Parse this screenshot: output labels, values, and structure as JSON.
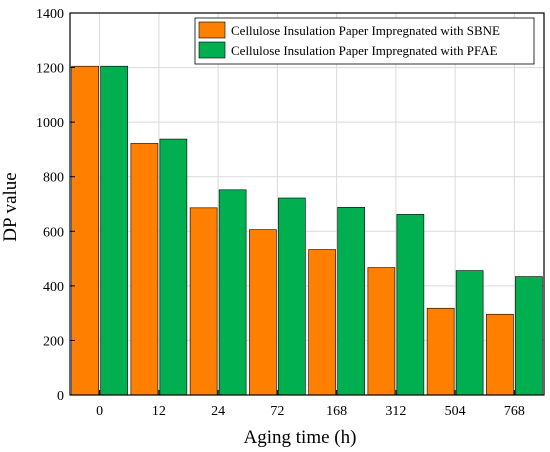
{
  "chart_data": {
    "type": "bar",
    "xlabel": "Aging time (h)",
    "ylabel": "DP value",
    "categories": [
      "0",
      "12",
      "24",
      "72",
      "168",
      "312",
      "504",
      "768"
    ],
    "ylim": [
      0,
      1400
    ],
    "yticks": [
      0,
      200,
      400,
      600,
      800,
      1000,
      1200,
      1400
    ],
    "grid": true,
    "legend_position": "top-right",
    "series": [
      {
        "name": "Cellulose Insulation Paper Impregnated with SBNE",
        "color": "#FF8000",
        "values": [
          1205,
          922,
          686,
          606,
          533,
          467,
          318,
          296
        ]
      },
      {
        "name": "Cellulose Insulation Paper Impregnated with PFAE",
        "color": "#00B050",
        "values": [
          1205,
          938,
          752,
          722,
          688,
          662,
          456,
          434
        ]
      }
    ]
  }
}
